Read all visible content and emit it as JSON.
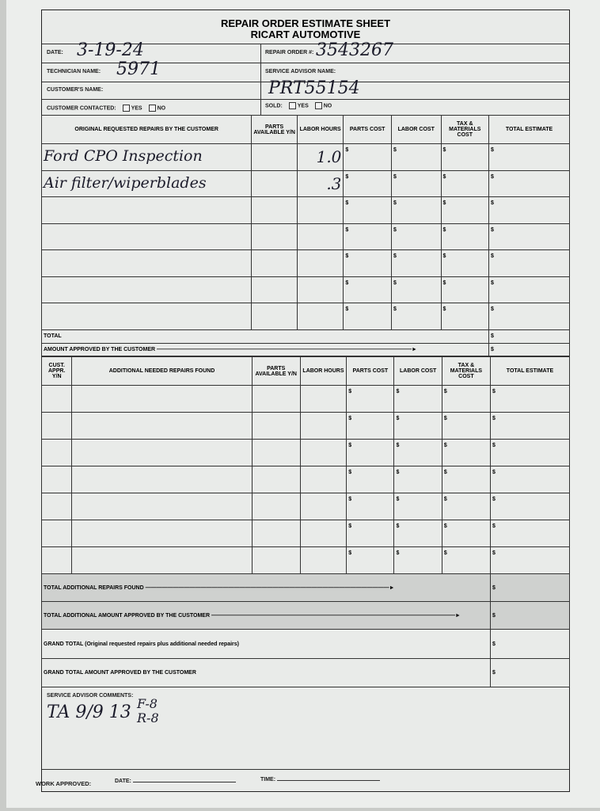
{
  "header": {
    "title": "REPAIR ORDER ESTIMATE SHEET",
    "company": "RICART AUTOMOTIVE"
  },
  "fields": {
    "date_label": "DATE:",
    "date_value": "3-19-24",
    "repair_order_label": "REPAIR ORDER #:",
    "repair_order_value": "3543267",
    "technician_label": "TECHNICIAN NAME:",
    "technician_value": "5971",
    "service_advisor_label": "SERVICE ADVISOR NAME:",
    "service_advisor_value": "PRT55154",
    "customer_name_label": "CUSTOMER'S NAME:",
    "customer_contacted_label": "CUSTOMER CONTACTED:",
    "yes": "YES",
    "no": "NO",
    "sold_label": "SOLD:"
  },
  "original": {
    "columns": [
      "ORIGINAL REQUESTED REPAIRS BY THE CUSTOMER",
      "PARTS AVAILABLE Y/N",
      "LABOR HOURS",
      "PARTS COST",
      "LABOR COST",
      "TAX & MATERIALS COST",
      "TOTAL ESTIMATE"
    ],
    "currency": "$",
    "rows": [
      {
        "description": "Ford CPO Inspection",
        "labor_hours": "1.0"
      },
      {
        "description": "Air filter/wiperblades",
        "labor_hours": ".3"
      },
      {
        "description": "",
        "labor_hours": ""
      },
      {
        "description": "",
        "labor_hours": ""
      },
      {
        "description": "",
        "labor_hours": ""
      },
      {
        "description": "",
        "labor_hours": ""
      },
      {
        "description": "",
        "labor_hours": ""
      }
    ],
    "total_label": "TOTAL",
    "approved_label": "AMOUNT APPROVED BY THE CUSTOMER"
  },
  "additional": {
    "columns": [
      "CUST. APPR. Y/N",
      "ADDITIONAL NEEDED REPAIRS FOUND",
      "PARTS AVAILABLE Y/N",
      "LABOR HOURS",
      "PARTS COST",
      "LABOR COST",
      "TAX & MATERIALS COST",
      "TOTAL ESTIMATE"
    ],
    "row_count": 7,
    "total_found_label": "TOTAL ADDITIONAL REPAIRS FOUND",
    "total_approved_label": "TOTAL ADDITIONAL AMOUNT APPROVED BY THE CUSTOMER"
  },
  "grand": {
    "total_label": "GRAND TOTAL (Original requested repairs plus additional needed repairs)",
    "approved_label": "GRAND TOTAL AMOUNT APPROVED BY THE CUSTOMER"
  },
  "comments": {
    "label": "SERVICE ADVISOR COMMENTS:",
    "line1": "TA 9/9  13",
    "line2": "F-8",
    "line3": "R-8"
  },
  "footer": {
    "work_approved": "WORK APPROVED:",
    "date": "DATE:",
    "time": "TIME:"
  }
}
